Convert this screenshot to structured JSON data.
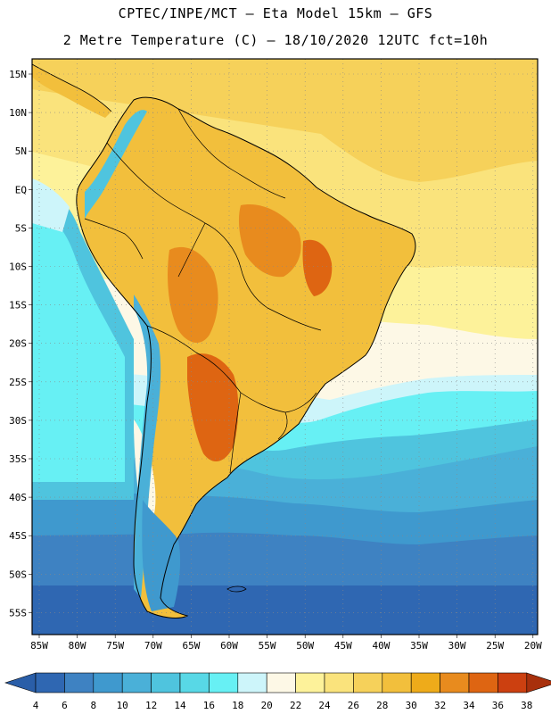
{
  "title": {
    "line1": "CPTEC/INPE/MCT –  Eta Model 15km – GFS",
    "line2": "2 Metre Temperature (C) – 18/10/2020 12UTC fct=10h"
  },
  "map": {
    "lat_labels": [
      "15N",
      "10N",
      "5N",
      "EQ",
      "5S",
      "10S",
      "15S",
      "20S",
      "25S",
      "30S",
      "35S",
      "40S",
      "45S",
      "50S",
      "55S"
    ],
    "lon_labels": [
      "85W",
      "80W",
      "75W",
      "70W",
      "65W",
      "60W",
      "55W",
      "50W",
      "45W",
      "40W",
      "35W",
      "30W",
      "25W",
      "20W"
    ]
  },
  "colorbar": {
    "labels": [
      "4",
      "6",
      "8",
      "10",
      "12",
      "14",
      "16",
      "18",
      "20",
      "22",
      "24",
      "26",
      "28",
      "30",
      "32",
      "34",
      "36",
      "38"
    ],
    "colors": [
      "#2f67b2",
      "#3e82c2",
      "#3f99ce",
      "#4ab0d8",
      "#4fc4de",
      "#58d8e6",
      "#67f0f4",
      "#cdf5fa",
      "#fdf8e6",
      "#fdf29a",
      "#fae37c",
      "#f6d15a",
      "#f2bf3c",
      "#eeab1a",
      "#e88b1e",
      "#de6512",
      "#cc4010",
      "#b62c0c"
    ],
    "low_color": "#2a5ea8",
    "high_color": "#a8300c"
  }
}
